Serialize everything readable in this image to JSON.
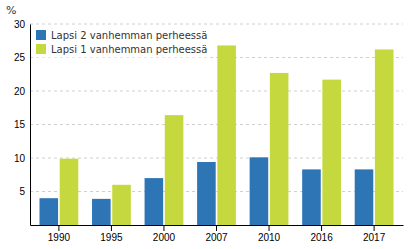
{
  "chart_data": {
    "type": "bar",
    "ylabel": "%",
    "categories": [
      "1990",
      "1995",
      "2000",
      "2007",
      "2010",
      "2016",
      "2017"
    ],
    "series": [
      {
        "name": "Lapsi 2 vanhemman perheessä",
        "color": "#2E75B6",
        "values": [
          4.0,
          3.9,
          7.0,
          9.4,
          10.1,
          8.3,
          8.3
        ]
      },
      {
        "name": "Lapsi 1 vanhemman perheessä",
        "color": "#C5D93E",
        "values": [
          9.9,
          6.0,
          16.4,
          26.8,
          22.7,
          21.7,
          26.2
        ]
      }
    ],
    "ylim": [
      0,
      30
    ],
    "yticks": [
      5,
      10,
      15,
      20,
      25,
      30
    ],
    "grid": true,
    "legend": "top-left"
  }
}
